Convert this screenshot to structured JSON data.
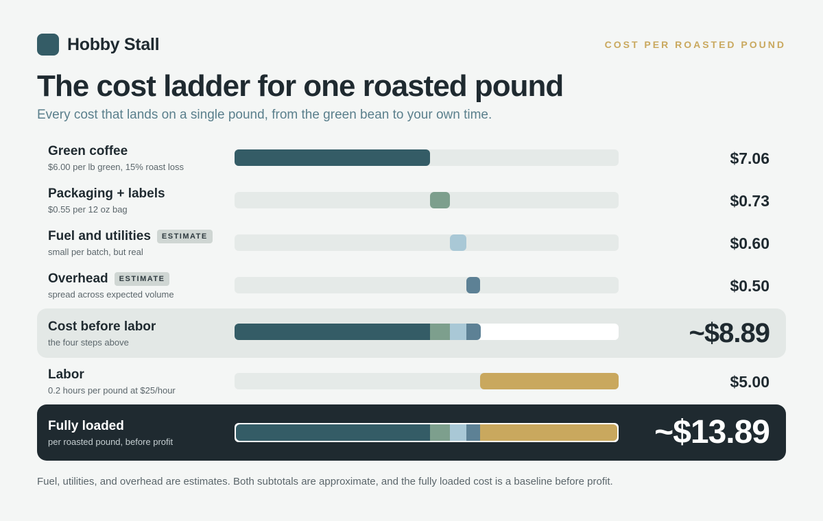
{
  "brand": {
    "name": "Hobby Stall",
    "eyebrow": "COST PER ROASTED POUND"
  },
  "title": "The cost ladder for one roasted pound",
  "subtitle": "Every cost that lands on a single pound, from the green bean to your own time.",
  "rows": [
    {
      "label": "Green coffee",
      "sub": "$6.00 per lb green, 15% roast loss",
      "amount": "$7.06",
      "badge": ""
    },
    {
      "label": "Packaging + labels",
      "sub": "$0.55 per 12 oz bag",
      "amount": "$0.73",
      "badge": ""
    },
    {
      "label": "Fuel and utilities",
      "sub": "small per batch, but real",
      "amount": "$0.60",
      "badge": "ESTIMATE"
    },
    {
      "label": "Overhead",
      "sub": "spread across expected volume",
      "amount": "$0.50",
      "badge": "ESTIMATE"
    },
    {
      "label": "Cost before labor",
      "sub": "the four steps above",
      "amount": "~$8.89",
      "badge": ""
    },
    {
      "label": "Labor",
      "sub": "0.2 hours per pound at $25/hour",
      "amount": "$5.00",
      "badge": ""
    },
    {
      "label": "Fully loaded",
      "sub": "per roasted pound, before profit",
      "amount": "~$13.89",
      "badge": ""
    }
  ],
  "footnote": "Fuel, utilities, and overhead are estimates. Both subtotals are approximate, and the fully loaded cost is a baseline before profit.",
  "chart_data": {
    "type": "bar",
    "subtype": "waterfall",
    "categories": [
      "Green coffee",
      "Packaging + labels",
      "Fuel and utilities",
      "Overhead",
      "Cost before labor",
      "Labor",
      "Fully loaded"
    ],
    "values": [
      7.06,
      0.73,
      0.6,
      0.5,
      8.89,
      5.0,
      13.89
    ],
    "steps": [
      {
        "name": "Green coffee",
        "value": 7.06,
        "color": "#345c66"
      },
      {
        "name": "Packaging + labels",
        "value": 0.73,
        "color": "#7d9f8d"
      },
      {
        "name": "Fuel and utilities",
        "value": 0.6,
        "color": "#a9c8d6"
      },
      {
        "name": "Overhead",
        "value": 0.5,
        "color": "#5d8195"
      },
      {
        "name": "Labor",
        "value": 5.0,
        "color": "#c9a85e"
      }
    ],
    "subtotals": [
      {
        "name": "Cost before labor",
        "value": 8.89,
        "includes": [
          "Green coffee",
          "Packaging + labels",
          "Fuel and utilities",
          "Overhead"
        ]
      },
      {
        "name": "Fully loaded",
        "value": 13.89,
        "includes": [
          "Green coffee",
          "Packaging + labels",
          "Fuel and utilities",
          "Overhead",
          "Labor"
        ]
      }
    ],
    "xlim": [
      0,
      13.89
    ],
    "grid": false,
    "colors": {
      "track": "#e5eae8",
      "accent": "#c9a85e",
      "dark": "#1f2a30"
    }
  }
}
